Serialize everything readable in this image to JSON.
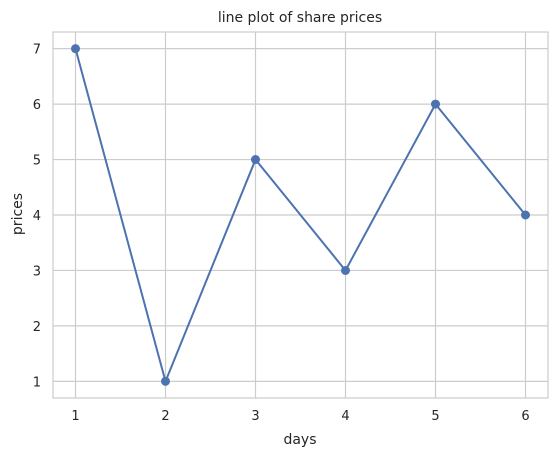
{
  "chart_data": {
    "type": "line",
    "title": "line plot of share prices",
    "xlabel": "days",
    "ylabel": "prices",
    "x": [
      1,
      2,
      3,
      4,
      5,
      6
    ],
    "series": [
      {
        "values": [
          7,
          1,
          5,
          3,
          6,
          4
        ],
        "color": "#4c72b0",
        "marker": "circle"
      }
    ],
    "xticks": [
      1,
      2,
      3,
      4,
      5,
      6
    ],
    "yticks": [
      1,
      2,
      3,
      4,
      5,
      6,
      7
    ],
    "xlim": [
      0.75,
      6.25
    ],
    "ylim": [
      0.7,
      7.3
    ],
    "grid": true,
    "grid_color": "#cccccc",
    "style": "seaborn-whitegrid"
  }
}
